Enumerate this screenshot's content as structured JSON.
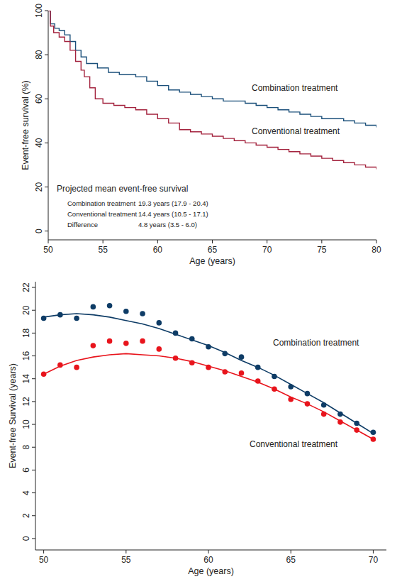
{
  "chart_data": [
    {
      "type": "line",
      "line_style": "step",
      "x_label": "Age (years)",
      "y_label": "Event-free survival (%)",
      "xlim": [
        50,
        80
      ],
      "ylim": [
        -4,
        100
      ],
      "xticks": [
        50,
        55,
        60,
        65,
        70,
        75,
        80
      ],
      "yticks": [
        0,
        20,
        40,
        60,
        80,
        100
      ],
      "series": [
        {
          "name": "Combination treatment",
          "color": "#1a4f7a",
          "x": [
            50,
            50.2,
            50.6,
            51,
            51.5,
            52,
            52.5,
            53,
            53.5,
            54.5,
            55.5,
            56.5,
            58,
            59,
            60,
            61,
            62,
            63,
            64,
            65,
            66,
            68,
            69,
            70,
            71,
            72,
            73,
            74,
            75,
            77,
            78,
            79,
            80
          ],
          "values": [
            100,
            94,
            92,
            91,
            89,
            86,
            82,
            79,
            76,
            74,
            72,
            71,
            70,
            68,
            66,
            64,
            63,
            62,
            61,
            60,
            59,
            58,
            57,
            56,
            55,
            54,
            53,
            52,
            51,
            50,
            49,
            48,
            47
          ]
        },
        {
          "name": "Conventional treatment",
          "color": "#a3223d",
          "x": [
            50,
            50.2,
            50.5,
            51,
            51.5,
            52,
            52.5,
            53,
            53.3,
            53.8,
            54.3,
            55,
            56,
            57,
            58,
            59,
            60,
            61,
            62,
            63,
            64,
            65,
            66,
            67,
            68,
            69,
            70,
            71,
            72,
            73,
            74,
            75,
            76,
            77,
            78,
            79,
            80
          ],
          "values": [
            100,
            93,
            90,
            88,
            86,
            82,
            77,
            73,
            70,
            65,
            60,
            58,
            57,
            56,
            55,
            53,
            51,
            49,
            46,
            45,
            44,
            43,
            42,
            41,
            40,
            39,
            38,
            37,
            36,
            35,
            34,
            33,
            32,
            31,
            30,
            29,
            28
          ]
        }
      ],
      "annotation": {
        "title": "Projected mean event-free survival",
        "rows": [
          {
            "label": "Combination treatment",
            "value": "19.3 years (17.9 - 20.4)"
          },
          {
            "label": "Conventional treatment",
            "value": "14.4 years (10.5 - 17.1)"
          },
          {
            "label": "Difference",
            "value": "4.8 years (3.5 - 6.0)"
          }
        ]
      }
    },
    {
      "type": "scatter",
      "marker": "circle",
      "x_label": "Age (years)",
      "y_label": "Event-free Survival (years)",
      "xlim": [
        49.5,
        70.8
      ],
      "ylim": [
        -1,
        22.5
      ],
      "xticks": [
        50,
        55,
        60,
        65,
        70
      ],
      "yticks": [
        0,
        2,
        4,
        6,
        8,
        10,
        12,
        14,
        16,
        18,
        20,
        22
      ],
      "x": [
        50,
        51,
        52,
        53,
        54,
        55,
        56,
        57,
        58,
        59,
        60,
        61,
        62,
        63,
        64,
        65,
        66,
        67,
        68,
        69,
        70
      ],
      "series": [
        {
          "name": "Combination treatment",
          "color": "#0e3c66",
          "values": [
            19.3,
            19.6,
            19.3,
            20.3,
            20.4,
            19.9,
            19.7,
            18.9,
            18.0,
            17.5,
            16.8,
            16.2,
            15.9,
            15.0,
            14.2,
            13.3,
            12.7,
            11.7,
            10.9,
            10.1,
            9.3
          ],
          "fitted_values": [
            19.4,
            19.6,
            19.7,
            19.6,
            19.4,
            19.1,
            18.8,
            18.4,
            17.9,
            17.4,
            16.9,
            16.3,
            15.6,
            15.0,
            14.3,
            13.5,
            12.7,
            11.9,
            11.0,
            10.1,
            9.2
          ]
        },
        {
          "name": "Conventional treatment",
          "color": "#e8141c",
          "values": [
            14.4,
            15.2,
            15.0,
            16.9,
            17.3,
            17.1,
            17.3,
            16.6,
            15.8,
            15.4,
            15.0,
            14.6,
            14.5,
            13.8,
            13.1,
            12.2,
            11.8,
            10.9,
            10.2,
            9.5,
            8.7
          ],
          "fitted_values": [
            14.4,
            15.1,
            15.6,
            15.9,
            16.1,
            16.2,
            16.1,
            16.0,
            15.8,
            15.5,
            15.1,
            14.7,
            14.2,
            13.7,
            13.1,
            12.4,
            11.8,
            11.1,
            10.3,
            9.5,
            8.7
          ]
        }
      ]
    }
  ]
}
